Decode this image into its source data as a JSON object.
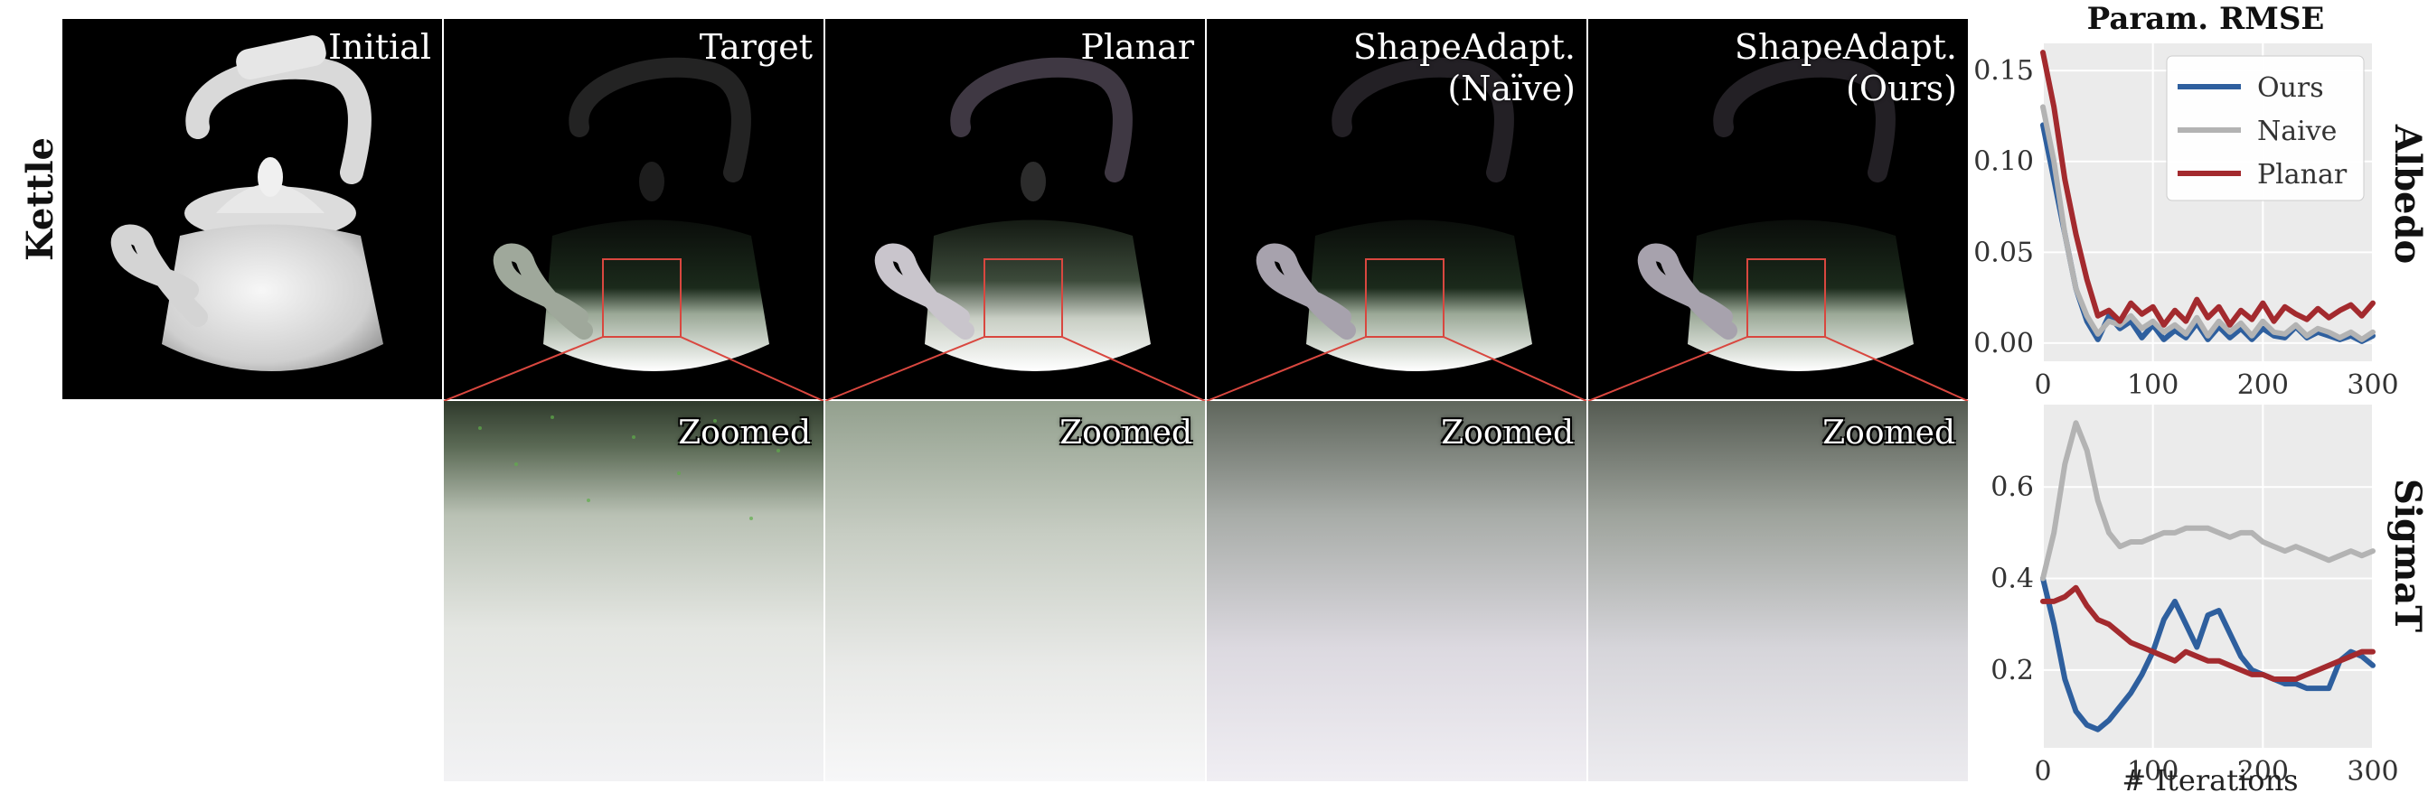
{
  "row_label": "Kettle",
  "panels": [
    {
      "id": "initial",
      "label_line1": "Initial",
      "label_line2": ""
    },
    {
      "id": "target",
      "label_line1": "Target",
      "label_line2": ""
    },
    {
      "id": "planar",
      "label_line1": "Planar",
      "label_line2": ""
    },
    {
      "id": "naive",
      "label_line1": "ShapeAdapt.",
      "label_line2": "(Naïve)"
    },
    {
      "id": "ours",
      "label_line1": "ShapeAdapt.",
      "label_line2": "(Ours)"
    }
  ],
  "zoom_label": "Zoomed",
  "colors": {
    "ours": "#2e5f9e",
    "naive": "#b3b3b3",
    "planar": "#a32a2e",
    "crop_box": "#d9473f"
  },
  "chart_data": [
    {
      "type": "line",
      "title": "Param. RMSE",
      "row_label": "Albedo",
      "xlabel": "",
      "xlim": [
        0,
        300
      ],
      "ylim": [
        -0.01,
        0.165
      ],
      "xticks": [
        0,
        100,
        200,
        300
      ],
      "yticks": [
        0.0,
        0.05,
        0.1,
        0.15
      ],
      "ytick_labels": [
        "0.00",
        "0.05",
        "0.10",
        "0.15"
      ],
      "grid": true,
      "legend": "top-right",
      "series": [
        {
          "name": "Ours",
          "key": "ours",
          "x": [
            0,
            10,
            20,
            30,
            40,
            50,
            60,
            70,
            80,
            90,
            100,
            110,
            120,
            130,
            140,
            150,
            160,
            170,
            180,
            190,
            200,
            210,
            220,
            230,
            240,
            250,
            260,
            270,
            280,
            290,
            300
          ],
          "y": [
            0.12,
            0.09,
            0.06,
            0.03,
            0.012,
            0.002,
            0.015,
            0.008,
            0.012,
            0.003,
            0.01,
            0.002,
            0.007,
            0.003,
            0.011,
            0.002,
            0.009,
            0.003,
            0.008,
            0.002,
            0.008,
            0.004,
            0.003,
            0.009,
            0.003,
            0.006,
            0.004,
            0.002,
            0.004,
            0.001,
            0.004
          ]
        },
        {
          "name": "Naive",
          "key": "naive",
          "x": [
            0,
            10,
            20,
            30,
            40,
            50,
            60,
            70,
            80,
            90,
            100,
            110,
            120,
            130,
            140,
            150,
            160,
            170,
            180,
            190,
            200,
            210,
            220,
            230,
            240,
            250,
            260,
            270,
            280,
            290,
            300
          ],
          "y": [
            0.13,
            0.1,
            0.06,
            0.03,
            0.015,
            0.005,
            0.012,
            0.01,
            0.015,
            0.008,
            0.012,
            0.006,
            0.01,
            0.005,
            0.014,
            0.004,
            0.012,
            0.006,
            0.011,
            0.004,
            0.012,
            0.006,
            0.005,
            0.01,
            0.004,
            0.008,
            0.006,
            0.003,
            0.006,
            0.002,
            0.006
          ]
        },
        {
          "name": "Planar",
          "key": "planar",
          "x": [
            0,
            10,
            20,
            30,
            40,
            50,
            60,
            70,
            80,
            90,
            100,
            110,
            120,
            130,
            140,
            150,
            160,
            170,
            180,
            190,
            200,
            210,
            220,
            230,
            240,
            250,
            260,
            270,
            280,
            290,
            300
          ],
          "y": [
            0.16,
            0.13,
            0.09,
            0.06,
            0.035,
            0.015,
            0.018,
            0.012,
            0.022,
            0.016,
            0.02,
            0.01,
            0.018,
            0.012,
            0.024,
            0.014,
            0.02,
            0.01,
            0.018,
            0.013,
            0.022,
            0.012,
            0.02,
            0.016,
            0.013,
            0.019,
            0.014,
            0.018,
            0.021,
            0.015,
            0.022
          ]
        }
      ]
    },
    {
      "type": "line",
      "title": "",
      "row_label": "SigmaT",
      "xlabel": "# Iterations",
      "xlim": [
        0,
        300
      ],
      "ylim": [
        0.03,
        0.78
      ],
      "xticks": [
        0,
        100,
        200,
        300
      ],
      "yticks": [
        0.2,
        0.4,
        0.6
      ],
      "ytick_labels": [
        "0.2",
        "0.4",
        "0.6"
      ],
      "grid": true,
      "legend": "none",
      "series": [
        {
          "name": "Ours",
          "key": "ours",
          "x": [
            0,
            10,
            20,
            30,
            40,
            50,
            60,
            70,
            80,
            90,
            100,
            110,
            120,
            130,
            140,
            150,
            160,
            170,
            180,
            190,
            200,
            210,
            220,
            230,
            240,
            250,
            260,
            270,
            280,
            290,
            300
          ],
          "y": [
            0.4,
            0.3,
            0.18,
            0.11,
            0.08,
            0.07,
            0.09,
            0.12,
            0.15,
            0.19,
            0.24,
            0.31,
            0.35,
            0.3,
            0.25,
            0.32,
            0.33,
            0.28,
            0.23,
            0.2,
            0.19,
            0.18,
            0.17,
            0.17,
            0.16,
            0.16,
            0.16,
            0.22,
            0.24,
            0.23,
            0.21
          ]
        },
        {
          "name": "Naive",
          "key": "naive",
          "x": [
            0,
            10,
            20,
            30,
            40,
            50,
            60,
            70,
            80,
            90,
            100,
            110,
            120,
            130,
            140,
            150,
            160,
            170,
            180,
            190,
            200,
            210,
            220,
            230,
            240,
            250,
            260,
            270,
            280,
            290,
            300
          ],
          "y": [
            0.4,
            0.5,
            0.65,
            0.74,
            0.68,
            0.57,
            0.5,
            0.47,
            0.48,
            0.48,
            0.49,
            0.5,
            0.5,
            0.51,
            0.51,
            0.51,
            0.5,
            0.49,
            0.5,
            0.5,
            0.48,
            0.47,
            0.46,
            0.47,
            0.46,
            0.45,
            0.44,
            0.45,
            0.46,
            0.45,
            0.46
          ]
        },
        {
          "name": "Planar",
          "key": "planar",
          "x": [
            0,
            10,
            20,
            30,
            40,
            50,
            60,
            70,
            80,
            90,
            100,
            110,
            120,
            130,
            140,
            150,
            160,
            170,
            180,
            190,
            200,
            210,
            220,
            230,
            240,
            250,
            260,
            270,
            280,
            290,
            300
          ],
          "y": [
            0.35,
            0.35,
            0.36,
            0.38,
            0.34,
            0.31,
            0.3,
            0.28,
            0.26,
            0.25,
            0.24,
            0.23,
            0.22,
            0.24,
            0.23,
            0.22,
            0.22,
            0.21,
            0.2,
            0.19,
            0.19,
            0.18,
            0.18,
            0.18,
            0.19,
            0.2,
            0.21,
            0.22,
            0.23,
            0.24,
            0.24
          ]
        }
      ]
    }
  ]
}
